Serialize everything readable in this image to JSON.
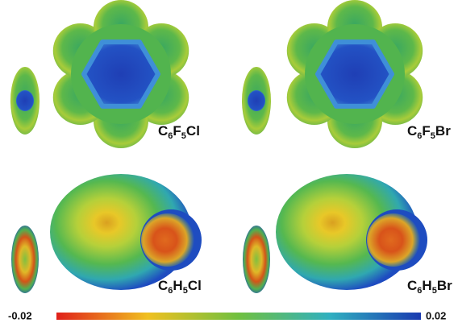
{
  "molecules": [
    {
      "label": "C6F5Cl"
    },
    {
      "label": "C6F5Br"
    },
    {
      "label": "C6H5Cl"
    },
    {
      "label": "C6H5Br"
    }
  ],
  "colorbar": {
    "min": -0.02,
    "max": 0.02
  }
}
